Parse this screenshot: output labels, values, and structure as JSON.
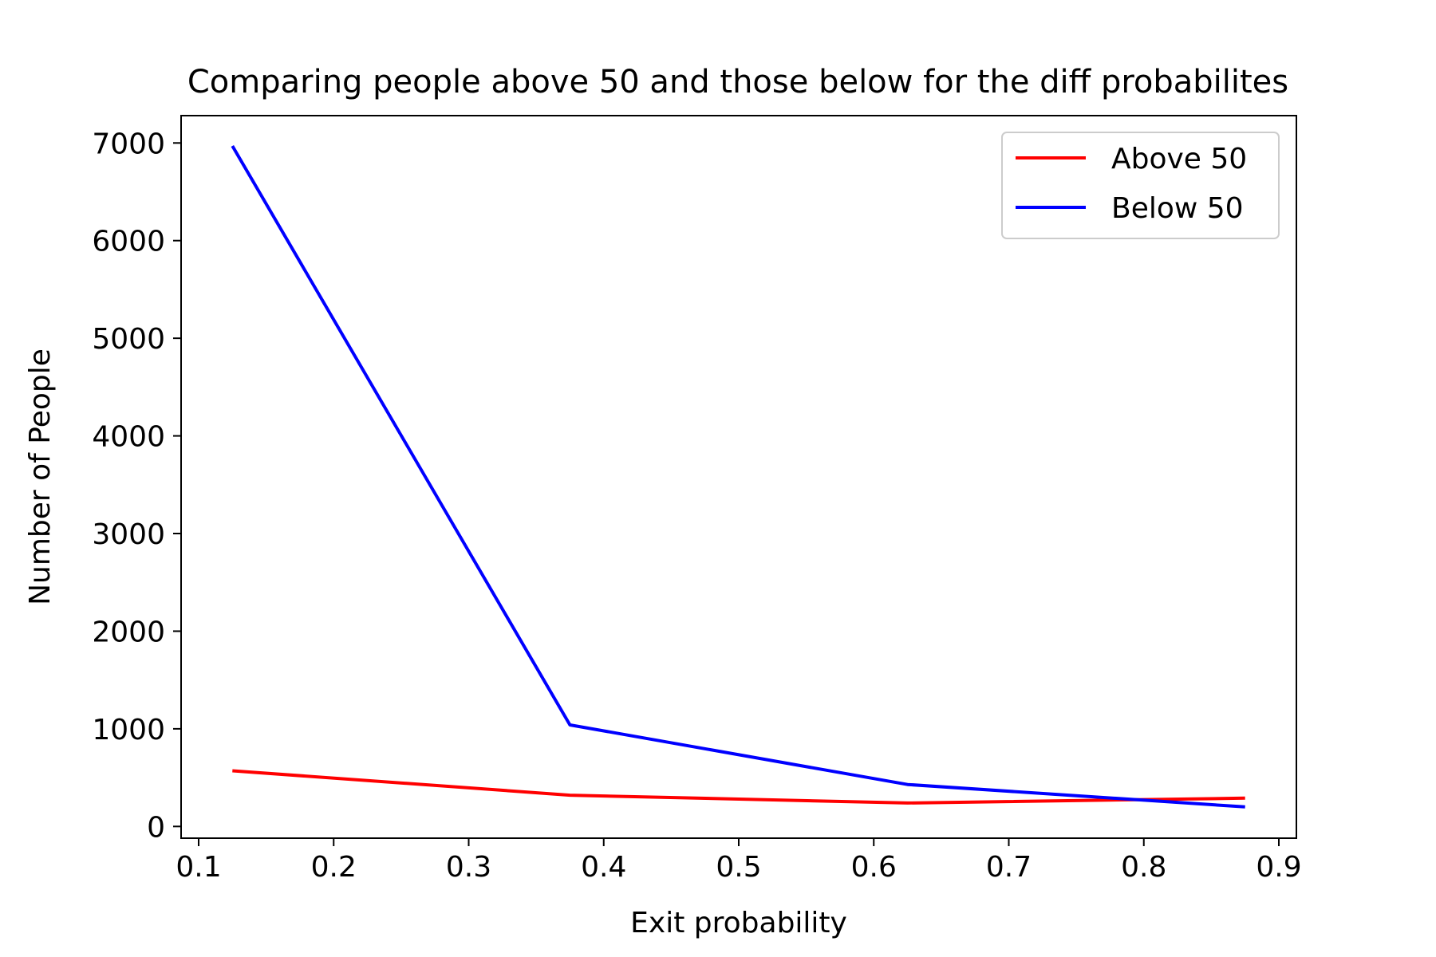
{
  "chart_data": {
    "type": "line",
    "title": "Comparing people above 50 and those below for the diff probabilites",
    "xlabel": "Exit probability",
    "ylabel": "Number of People",
    "xlim": [
      0.087,
      0.913
    ],
    "ylim": [
      -120,
      7280
    ],
    "xticks": [
      0.1,
      0.2,
      0.3,
      0.4,
      0.5,
      0.6,
      0.7,
      0.8,
      0.9
    ],
    "xtick_labels": [
      "0.1",
      "0.2",
      "0.3",
      "0.4",
      "0.5",
      "0.6",
      "0.7",
      "0.8",
      "0.9"
    ],
    "yticks": [
      0,
      1000,
      2000,
      3000,
      4000,
      5000,
      6000,
      7000
    ],
    "ytick_labels": [
      "0",
      "1000",
      "2000",
      "3000",
      "4000",
      "5000",
      "6000",
      "7000"
    ],
    "x": [
      0.125,
      0.375,
      0.625,
      0.875
    ],
    "series": [
      {
        "name": "Above 50",
        "color": "#ff0000",
        "values": [
          570,
          320,
          240,
          290
        ]
      },
      {
        "name": "Below 50",
        "color": "#0000ff",
        "values": [
          6970,
          1040,
          430,
          200
        ]
      }
    ],
    "grid": false,
    "legend_position": "top-right"
  }
}
